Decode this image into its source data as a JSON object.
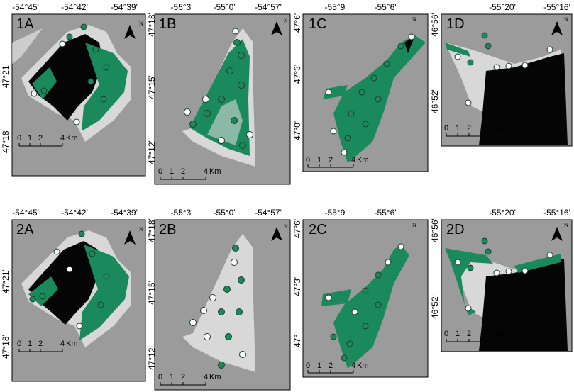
{
  "scale_bar": {
    "ticks": [
      "0",
      "1",
      "2",
      "4"
    ],
    "unit": "Km"
  },
  "north_label": "N",
  "colors": {
    "land": "#9b9b9b",
    "water": "#d8d8d8",
    "black_area": "#050505",
    "green": "#1a8a5c",
    "point_outline": "#1f3a2a",
    "white_point": "#ffffff"
  },
  "panels": [
    {
      "id": "1A",
      "label": "1A",
      "lon_ticks": [
        "-54°45'",
        "-54°42'",
        "-54°39'"
      ],
      "lat_ticks": [
        "47°21'",
        "47°18'"
      ]
    },
    {
      "id": "1B",
      "label": "1B",
      "lon_ticks": [
        "-55°3'",
        "-55°0'",
        "-54°57'"
      ],
      "lat_ticks": [
        "47°18'",
        "47°15'",
        "47°12'"
      ]
    },
    {
      "id": "1C",
      "label": "1C",
      "lon_ticks": [
        "-55°9'",
        "-55°6'"
      ],
      "lat_ticks": [
        "47°6'",
        "47°3'",
        "47°0'"
      ]
    },
    {
      "id": "1D",
      "label": "1D",
      "lon_ticks": [
        "-55°20'",
        "-55°16'"
      ],
      "lat_ticks": [
        "46°56'",
        "46°52'"
      ]
    },
    {
      "id": "2A",
      "label": "2A",
      "lon_ticks": [
        "-54°45'",
        "-54°42'",
        "-54°39'"
      ],
      "lat_ticks": [
        "47°21'",
        "47°18'"
      ]
    },
    {
      "id": "2B",
      "label": "2B",
      "lon_ticks": [
        "-55°3'",
        "-55°0'",
        "-54°57'"
      ],
      "lat_ticks": [
        "47°18'",
        "47°15'",
        "47°12'"
      ]
    },
    {
      "id": "2C",
      "label": "2C",
      "lon_ticks": [
        "-55°9'",
        "-55°6'"
      ],
      "lat_ticks": [
        "47°6'",
        "47°3'",
        "47°"
      ]
    },
    {
      "id": "2D",
      "label": "2D",
      "lon_ticks": [
        "-55°20'",
        "-55°16'"
      ],
      "lat_ticks": [
        "46°56'",
        "46°52'"
      ]
    }
  ]
}
